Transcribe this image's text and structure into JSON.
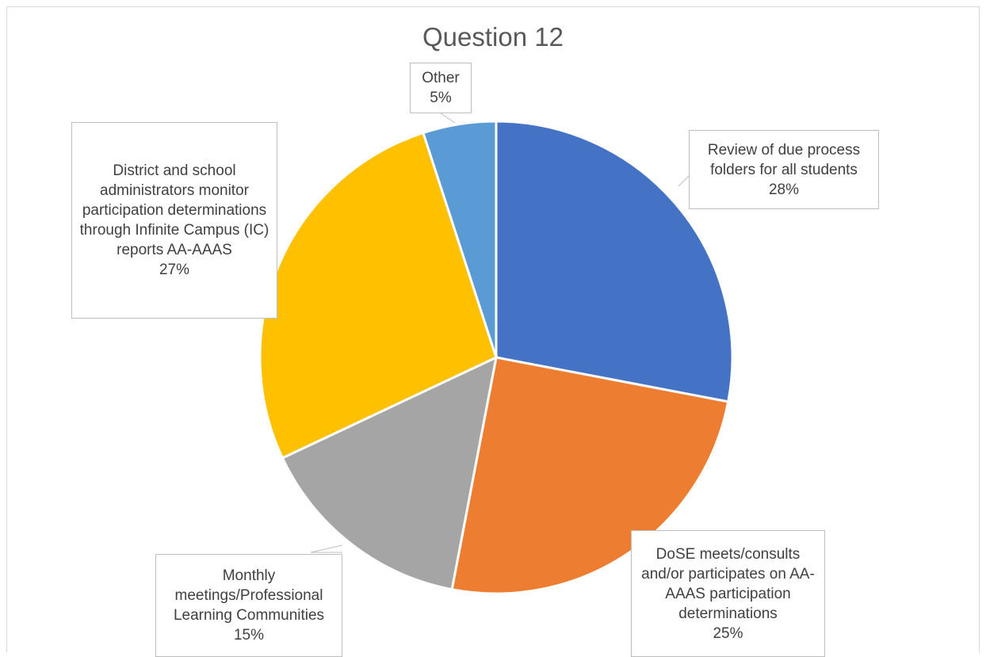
{
  "chart_data": {
    "type": "pie",
    "title": "Question 12",
    "slices": [
      {
        "label": "Review of due process folders for all students",
        "value": 28,
        "display": "28%",
        "color": "#4472C4"
      },
      {
        "label": "DoSE meets/consults and/or participates on AA-AAAS participation determinations",
        "value": 25,
        "display": "25%",
        "color": "#ED7D31"
      },
      {
        "label": "Monthly meetings/Professional Learning Communities",
        "value": 15,
        "display": "15%",
        "color": "#A5A5A5"
      },
      {
        "label": "District and school administrators monitor participation determinations through Infinite Campus (IC) reports AA-AAAS",
        "value": 27,
        "display": "27%",
        "color": "#FFC000"
      },
      {
        "label": "Other",
        "value": 5,
        "display": "5%",
        "color": "#5B9BD5"
      }
    ],
    "legend": "none",
    "data_labels": "callouts"
  }
}
